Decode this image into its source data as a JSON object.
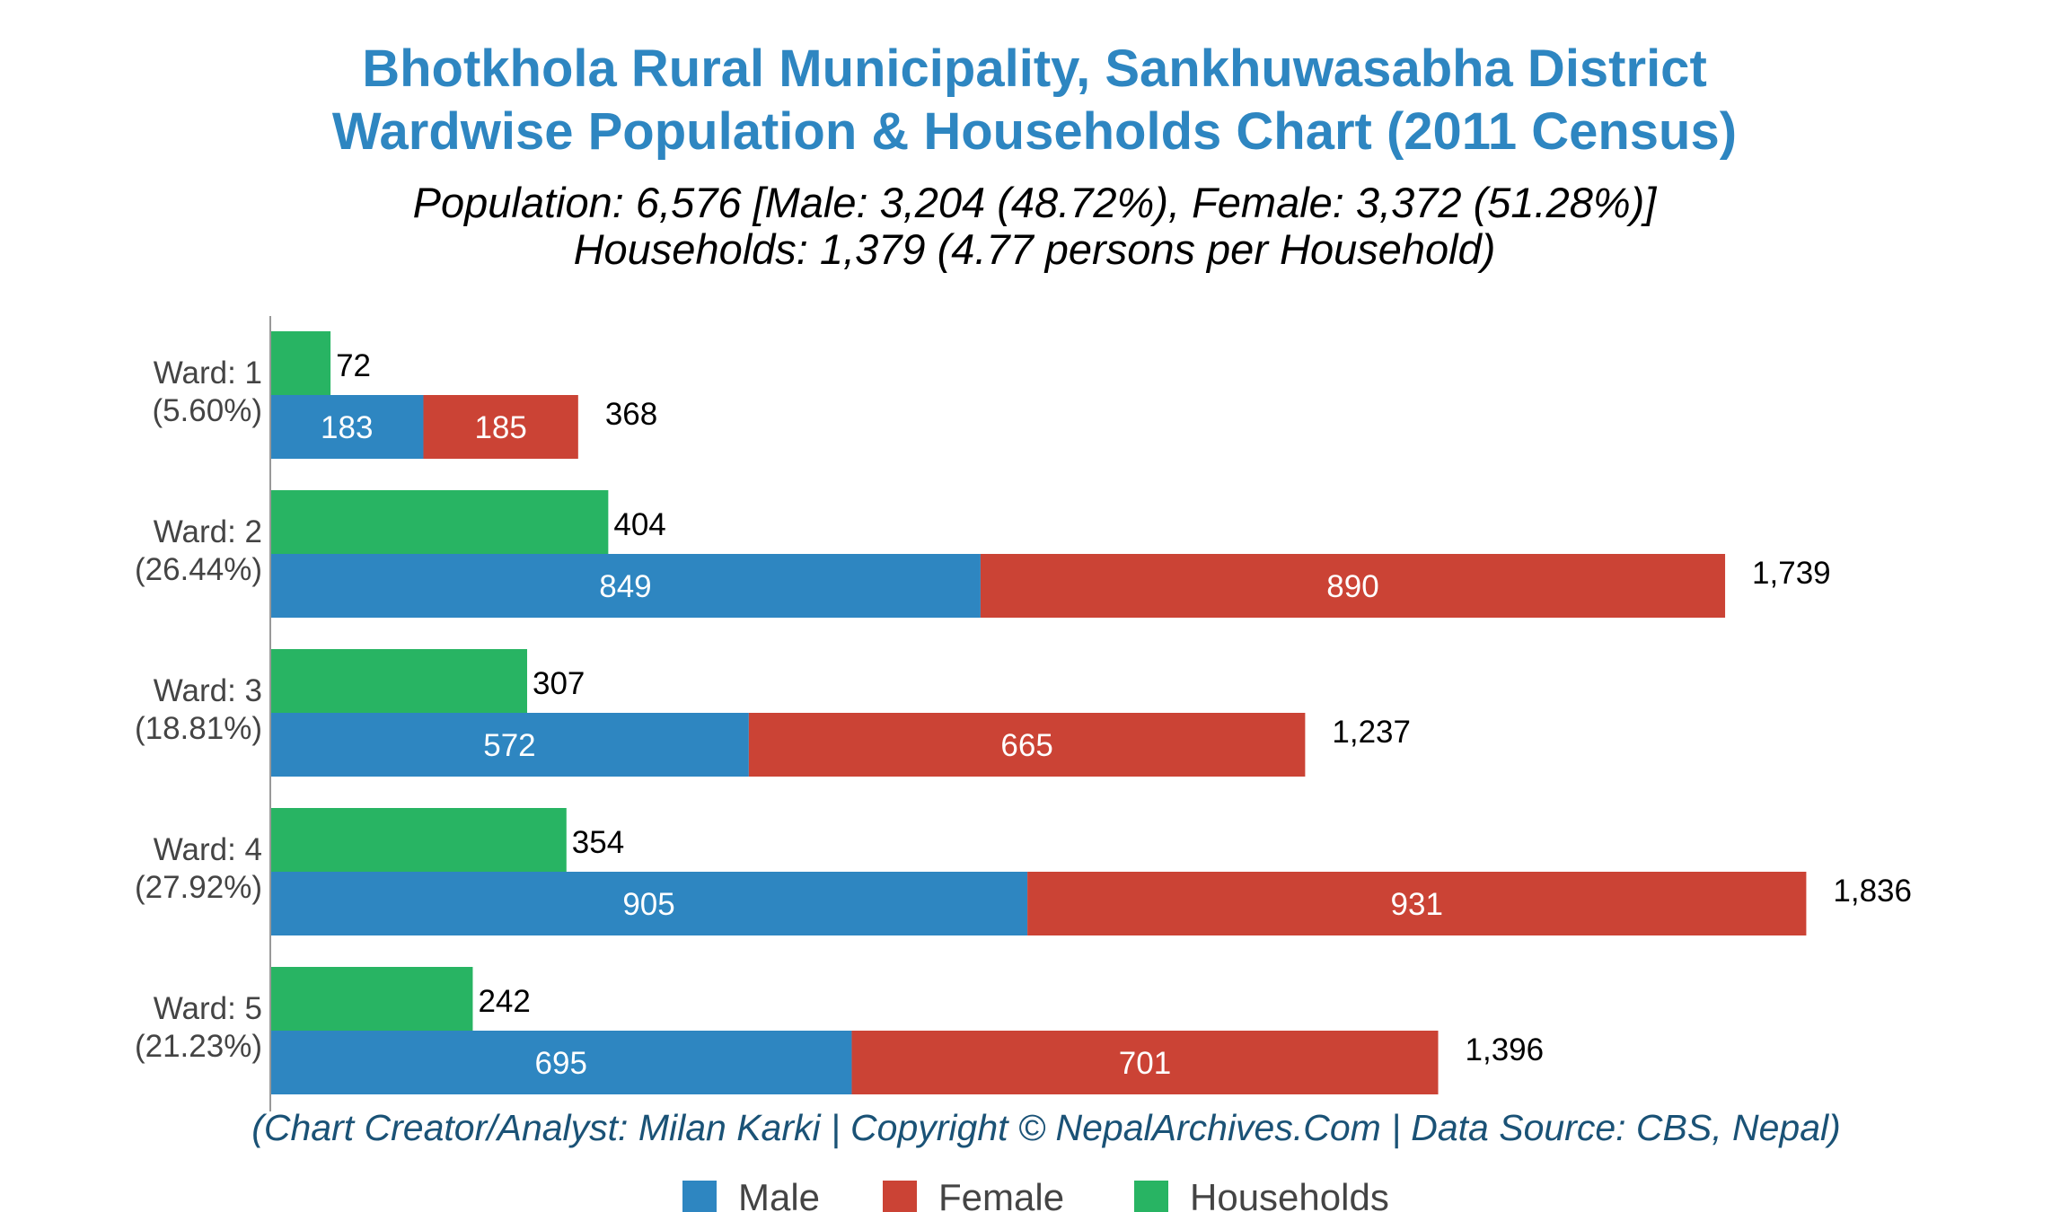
{
  "chart_data": {
    "type": "bar",
    "orientation": "horizontal",
    "title": [
      "Bhotkhola Rural Municipality, Sankhuwasabha District",
      "Wardwise Population & Households Chart (2011 Census)"
    ],
    "subtitle": [
      "Population: 6,576 [Male: 3,204 (48.72%), Female: 3,372 (51.28%)]",
      "Households: 1,379 (4.77 persons per Household)"
    ],
    "footer": "(Chart Creator/Analyst: Milan Karki | Copyright © NepalArchives.Com | Data Source: CBS, Nepal)",
    "categories": [
      "Ward: 1",
      "Ward: 2",
      "Ward: 3",
      "Ward: 4",
      "Ward: 5"
    ],
    "category_shares": [
      "(5.60%)",
      "(26.44%)",
      "(18.81%)",
      "(27.92%)",
      "(21.23%)"
    ],
    "series": [
      {
        "name": "Male",
        "color": "#2e86c1",
        "values": [
          183,
          849,
          572,
          905,
          695
        ],
        "labels": [
          "183",
          "849",
          "572",
          "905",
          "695"
        ]
      },
      {
        "name": "Female",
        "color": "#cb4335",
        "values": [
          185,
          890,
          665,
          931,
          701
        ],
        "labels": [
          "185",
          "890",
          "665",
          "931",
          "701"
        ]
      },
      {
        "name": "Households",
        "color": "#28b463",
        "values": [
          72,
          404,
          307,
          354,
          242
        ],
        "labels": [
          "72",
          "404",
          "307",
          "354",
          "242"
        ]
      }
    ],
    "totals": [
      "368",
      "1,739",
      "1,237",
      "1,836",
      "1,396"
    ],
    "stacked": [
      "Male",
      "Female"
    ],
    "xlim": [
      0,
      2000
    ],
    "grid": false,
    "legend_placement": "bottom",
    "title_color": "#2e86c1",
    "footer_color": "#1a5276"
  }
}
